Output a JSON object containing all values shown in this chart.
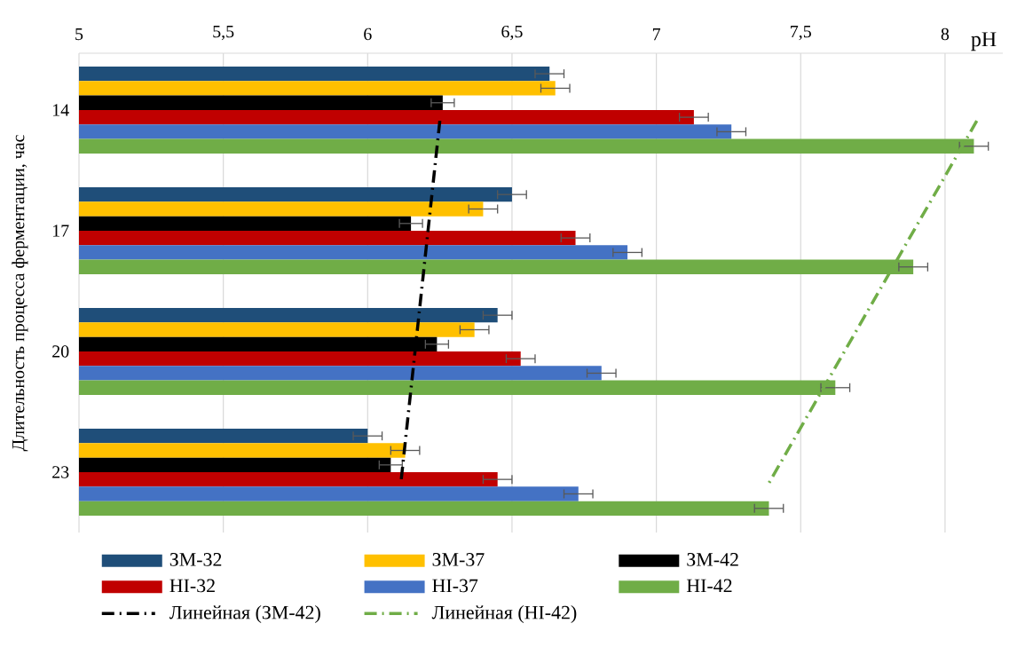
{
  "chart_data": {
    "type": "bar",
    "orientation": "horizontal",
    "xlabel": "pH",
    "ylabel": "Длительность процесса ферментации, час",
    "categories": [
      "14",
      "17",
      "20",
      "23"
    ],
    "xlim": [
      5,
      8.2
    ],
    "xticks": [
      5,
      {
        "value": 5.5,
        "label": "5,5"
      },
      6,
      {
        "value": 6.5,
        "label": "6,5"
      },
      7,
      {
        "value": 7.5,
        "label": "7,5"
      },
      8
    ],
    "grid": "x",
    "legend": "bottom",
    "series": [
      {
        "name": "ЗМ-32",
        "color": "#1f4e79",
        "values": [
          6.63,
          6.5,
          6.45,
          6.0
        ],
        "errors": [
          0.05,
          0.05,
          0.05,
          0.05
        ]
      },
      {
        "name": "ЗМ-37",
        "color": "#ffc000",
        "values": [
          6.65,
          6.4,
          6.37,
          6.13
        ],
        "errors": [
          0.05,
          0.05,
          0.05,
          0.05
        ]
      },
      {
        "name": "ЗМ-42",
        "color": "#000000",
        "values": [
          6.26,
          6.15,
          6.24,
          6.08
        ],
        "errors": [
          0.04,
          0.04,
          0.04,
          0.04
        ]
      },
      {
        "name": "HI-32",
        "color": "#c00000",
        "values": [
          7.13,
          6.72,
          6.53,
          6.45
        ],
        "errors": [
          0.05,
          0.05,
          0.05,
          0.05
        ]
      },
      {
        "name": "HI-37",
        "color": "#4472c4",
        "values": [
          7.26,
          6.9,
          6.81,
          6.73
        ],
        "errors": [
          0.05,
          0.05,
          0.05,
          0.05
        ]
      },
      {
        "name": "HI-42",
        "color": "#70ad47",
        "values": [
          8.1,
          7.89,
          7.62,
          7.39
        ],
        "errors": [
          0.05,
          0.05,
          0.05,
          0.05
        ]
      },
      {
        "name": "Линейная (ЗМ-42)",
        "type": "line",
        "line_style": "dashed",
        "marker": "none",
        "color": "#000000",
        "values": [
          6.25,
          6.205,
          6.16,
          6.115
        ]
      },
      {
        "name": "Линейная (HI-42)",
        "type": "line",
        "line_style": "dashed",
        "marker": "none",
        "color": "#70ad47",
        "values": [
          8.11,
          7.87,
          7.63,
          7.39
        ]
      }
    ]
  }
}
